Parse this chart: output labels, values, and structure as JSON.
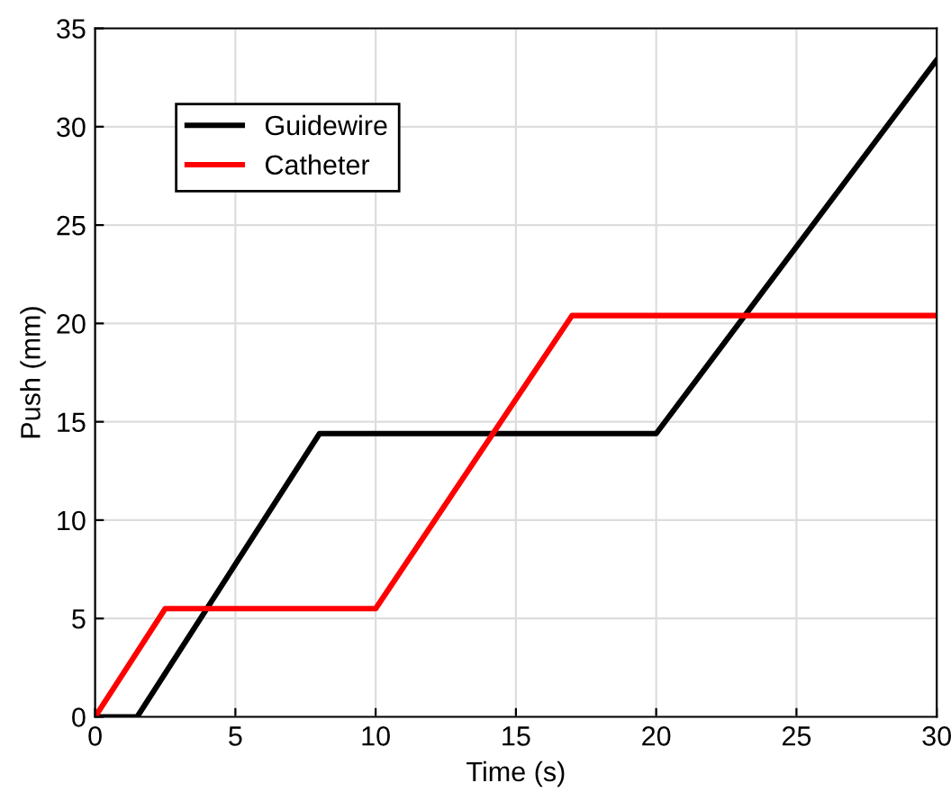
{
  "chart_data": {
    "type": "line",
    "xlabel": "Time (s)",
    "ylabel": "Push (mm)",
    "xlim": [
      0,
      30
    ],
    "ylim": [
      0,
      35
    ],
    "xticks": [
      0,
      5,
      10,
      15,
      20,
      25,
      30
    ],
    "yticks": [
      0,
      5,
      10,
      15,
      20,
      25,
      30,
      35
    ],
    "grid": true,
    "legend": "top left",
    "marker": "none",
    "line_style": "solid",
    "series": [
      {
        "name": "Guidewire",
        "color": "#000000",
        "x": [
          0,
          1.5,
          8,
          20,
          30
        ],
        "values": [
          0,
          0,
          14.4,
          14.4,
          33.4
        ]
      },
      {
        "name": "Catheter",
        "color": "#ff0000",
        "x": [
          0,
          2.5,
          10,
          17,
          30
        ],
        "values": [
          0,
          5.5,
          5.5,
          20.4,
          20.4
        ]
      }
    ]
  }
}
